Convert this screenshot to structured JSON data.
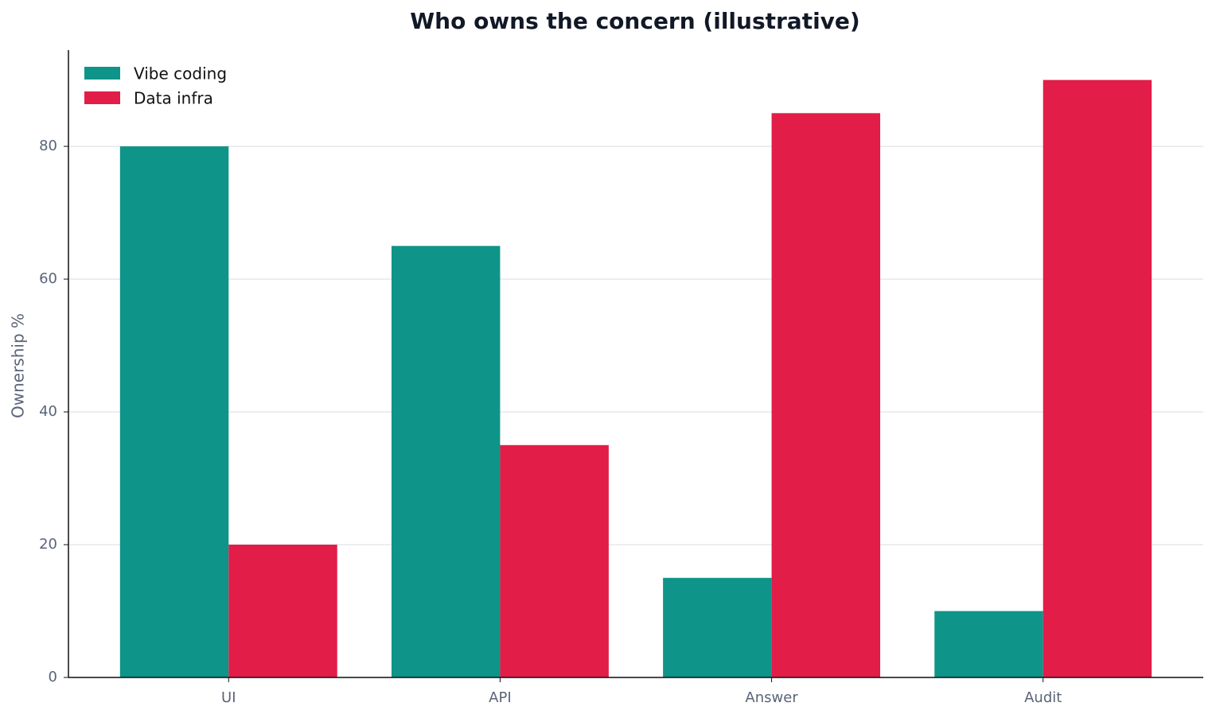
{
  "chart_data": {
    "type": "bar",
    "title": "Who owns the concern (illustrative)",
    "y_label": "Ownership %",
    "categories": [
      "UI",
      "API",
      "Answer",
      "Audit"
    ],
    "series": [
      {
        "name": "Vibe coding",
        "color": "#0e9488",
        "values": [
          80,
          65,
          15,
          10
        ]
      },
      {
        "name": "Data infra",
        "color": "#e11d48",
        "values": [
          20,
          35,
          85,
          90
        ]
      }
    ],
    "ylim": [
      0,
      94.5
    ],
    "yticks": [
      0,
      20,
      40,
      60,
      80
    ],
    "grid": true,
    "legend": "upper-left"
  }
}
